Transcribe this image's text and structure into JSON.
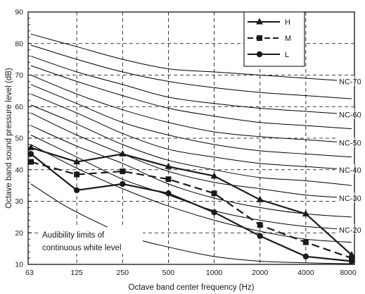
{
  "chart_data": {
    "type": "line",
    "xlabel": "Octave band center frequency (Hz)",
    "ylabel": "Octave band sound pressure level (dB)",
    "categories": [
      "63",
      "125",
      "250",
      "500",
      "1000",
      "2000",
      "4000",
      "8000"
    ],
    "ylim": [
      10,
      90
    ],
    "yticks": [
      "10",
      "20",
      "30",
      "40",
      "50",
      "60",
      "70",
      "80",
      "90"
    ],
    "grid": "dashed",
    "legend_position": "top-right",
    "series": [
      {
        "name": "H",
        "marker": "triangle",
        "dash": "solid",
        "values": [
          47,
          42.5,
          45,
          41,
          38,
          30.5,
          26,
          13
        ]
      },
      {
        "name": "M",
        "marker": "square",
        "dash": "dashed",
        "values": [
          42.5,
          38.5,
          39.5,
          37,
          32.5,
          22.5,
          17,
          12
        ]
      },
      {
        "name": "L",
        "marker": "circle",
        "dash": "solid",
        "values": [
          45,
          33.5,
          35.5,
          32.5,
          26.5,
          19,
          12.5,
          11
        ]
      }
    ],
    "nc_curves": [
      {
        "values": [
          83,
          79,
          75,
          72,
          71,
          70,
          69,
          68
        ],
        "label": "NC-70"
      },
      {
        "values": [
          79.5,
          75,
          71,
          68,
          66,
          64.5,
          63.5,
          62.5
        ]
      },
      {
        "values": [
          76,
          71,
          67,
          63,
          61,
          59.5,
          58.5,
          57.5
        ],
        "label": "NC-60"
      },
      {
        "values": [
          73,
          68,
          63.5,
          59.5,
          57,
          55,
          54,
          53
        ]
      },
      {
        "values": [
          70,
          64,
          59,
          55,
          52,
          50.5,
          49.5,
          48.5
        ],
        "label": "NC-50"
      },
      {
        "values": [
          67,
          61,
          55,
          51,
          48,
          46,
          45,
          44
        ]
      },
      {
        "values": [
          64,
          58,
          51.5,
          46.5,
          44,
          42,
          41,
          40
        ],
        "label": "NC-40"
      },
      {
        "values": [
          60.5,
          54.5,
          48,
          43,
          40,
          37.5,
          36.5,
          35
        ]
      },
      {
        "values": [
          58,
          51,
          45,
          39.5,
          36,
          34,
          32,
          31
        ],
        "label": "NC-30"
      },
      {
        "values": [
          54,
          47.5,
          42,
          35.5,
          31,
          28,
          26,
          25
        ]
      },
      {
        "values": [
          51,
          44,
          37,
          32,
          27,
          24,
          22,
          21
        ],
        "label": "NC-20"
      },
      {
        "values": [
          48,
          40.5,
          34,
          28.5,
          24,
          20.5,
          18,
          17
        ]
      }
    ],
    "audibility_curve": {
      "x": [
        0,
        0.75,
        1.5,
        2.2,
        3.0,
        4.0,
        5.0,
        6.0,
        7.0
      ],
      "values": [
        35.5,
        28.5,
        23,
        18.5,
        15.5,
        12.5,
        11,
        10.5,
        10.2
      ]
    },
    "annotation": {
      "line1": "Audibility limits of",
      "line2": "continuous white level"
    }
  }
}
